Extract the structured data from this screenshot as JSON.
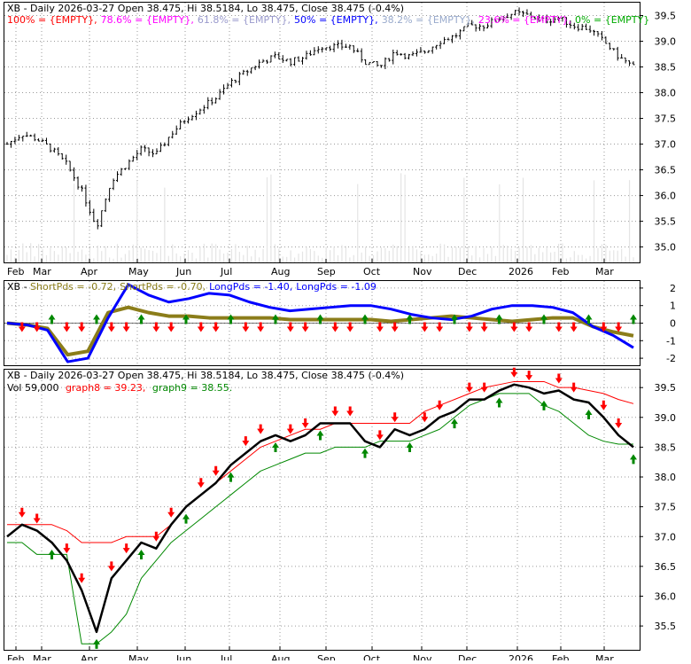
{
  "colors": {
    "background": "#ffffff",
    "frame": "#000000",
    "grid": "#9a9a9a",
    "candle": "#000000",
    "volume": "#e4e4e4",
    "fib_100": "#ff0000",
    "fib_78_6": "#ff00ff",
    "fib_61_8": "#9999cc",
    "fib_50": "#0000ff",
    "fib_38_2": "#99aacc",
    "fib_23_6": "#ff00ff",
    "fib_0": "#00aa00",
    "text": "#000000",
    "short_pds": "#8b7d1a",
    "long_pds": "#0000ff",
    "arrow_up": "#008800",
    "arrow_down": "#ff0000",
    "graph8": "#ff0000",
    "graph9": "#008800"
  },
  "panel1": {
    "header_prefix": "XB - Daily 2026-03-27 Open 38.475, Hi 38.5184, Lo 38.475, Close 38.475 (-0.4%)",
    "fib_labels": [
      {
        "text": "100% = {EMPTY},",
        "color_key": "fib_100"
      },
      {
        "text": "78.6% = {EMPTY},",
        "color_key": "fib_78_6"
      },
      {
        "text": "61.8% = {EMPTY},",
        "color_key": "fib_61_8"
      },
      {
        "text": "50% = {EMPTY},",
        "color_key": "fib_50"
      },
      {
        "text": "38.2% = {EMPTY},",
        "color_key": "fib_38_2"
      },
      {
        "text": "23.6% = {EMPTY},",
        "color_key": "fib_23_6"
      },
      {
        "text": "0% = {EMPTY}",
        "color_key": "fib_0"
      }
    ]
  },
  "panel2": {
    "header": [
      {
        "text": "XB - ",
        "color_key": "text"
      },
      {
        "text": "ShortPds = -0.72,",
        "color_key": "short_pds"
      },
      {
        "text": "ShortPds = -0.70,",
        "color_key": "short_pds"
      },
      {
        "text": "LongPds = -1.40,",
        "color_key": "long_pds"
      },
      {
        "text": "LongPds = -1.09",
        "color_key": "long_pds"
      }
    ]
  },
  "panel3": {
    "header_line1": "XB - Daily 2026-03-27 Open 38.475, Hi 38.5184, Lo 38.475, Close 38.475 (-0.4%)",
    "vol_text": "Vol 59,000",
    "graph8_text": "graph8 = 39.23,",
    "graph9_text": "graph9 = 38.55."
  },
  "chart_data": [
    {
      "type": "candlestick",
      "title": "XB - Daily 2026-03-27 Open 38.475, Hi 38.5184, Lo 38.475, Close 38.475 (-0.4%)",
      "x_ticks": [
        "Feb",
        "Mar",
        "Apr",
        "May",
        "Jun",
        "Jul",
        "Aug",
        "Sep",
        "Oct",
        "Nov",
        "Dec",
        "2026",
        "Feb",
        "Mar"
      ],
      "ylim": [
        34.7,
        39.75
      ],
      "y_ticks": [
        35.0,
        35.5,
        36.0,
        36.5,
        37.0,
        37.5,
        38.0,
        38.5,
        39.0,
        39.5
      ],
      "grid": true,
      "series": [
        {
          "name": "Close",
          "values": [
            37.0,
            37.2,
            37.1,
            36.9,
            36.6,
            36.1,
            35.4,
            36.3,
            36.6,
            36.9,
            36.8,
            37.2,
            37.5,
            37.7,
            37.9,
            38.2,
            38.4,
            38.6,
            38.7,
            38.6,
            38.7,
            38.9,
            38.9,
            38.9,
            38.6,
            38.5,
            38.8,
            38.7,
            38.8,
            39.0,
            39.1,
            39.3,
            39.3,
            39.45,
            39.55,
            39.5,
            39.4,
            39.45,
            39.3,
            39.25,
            39.0,
            38.7,
            38.5
          ]
        }
      ]
    },
    {
      "type": "line",
      "title": "XB - ShortPds / LongPds",
      "x_ticks": [
        "Feb",
        "Mar",
        "Apr",
        "May",
        "Jun",
        "Jul",
        "Aug",
        "Sep",
        "Oct",
        "Nov",
        "Dec",
        "2026",
        "Feb",
        "Mar"
      ],
      "ylim": [
        -2.4,
        2.4
      ],
      "y_ticks": [
        -2,
        -1,
        0,
        1,
        2
      ],
      "grid": true,
      "series": [
        {
          "name": "ShortPds",
          "values": [
            0.0,
            -0.1,
            -0.3,
            -1.8,
            -1.6,
            0.6,
            0.9,
            0.6,
            0.4,
            0.4,
            0.3,
            0.3,
            0.3,
            0.3,
            0.2,
            0.2,
            0.2,
            0.2,
            0.2,
            0.1,
            0.2,
            0.3,
            0.4,
            0.3,
            0.2,
            0.1,
            0.2,
            0.3,
            0.3,
            -0.2,
            -0.5,
            -0.72
          ]
        },
        {
          "name": "LongPds",
          "values": [
            0.0,
            -0.1,
            -0.4,
            -2.2,
            -2.0,
            0.3,
            2.2,
            1.6,
            1.2,
            1.4,
            1.7,
            1.6,
            1.2,
            0.9,
            0.7,
            0.8,
            0.9,
            1.0,
            1.0,
            0.8,
            0.5,
            0.3,
            0.2,
            0.4,
            0.8,
            1.0,
            1.0,
            0.9,
            0.6,
            -0.2,
            -0.7,
            -1.4
          ]
        }
      ]
    },
    {
      "type": "line",
      "title": "XB - Daily 2026-03-27 Open 38.475, Hi 38.5184, Lo 38.475, Close 38.475 (-0.4%)",
      "x_ticks": [
        "Feb",
        "Mar",
        "Apr",
        "May",
        "Jun",
        "Jul",
        "Aug",
        "Sep",
        "Oct",
        "Nov",
        "Dec",
        "2026",
        "Feb",
        "Mar"
      ],
      "ylim": [
        35.1,
        39.8
      ],
      "y_ticks": [
        35.5,
        36.0,
        36.5,
        37.0,
        37.5,
        38.0,
        38.5,
        39.0,
        39.5
      ],
      "grid": true,
      "series": [
        {
          "name": "Close",
          "values": [
            37.0,
            37.2,
            37.1,
            36.9,
            36.6,
            36.1,
            35.4,
            36.3,
            36.6,
            36.9,
            36.8,
            37.2,
            37.5,
            37.7,
            37.9,
            38.2,
            38.4,
            38.6,
            38.7,
            38.6,
            38.7,
            38.9,
            38.9,
            38.9,
            38.6,
            38.5,
            38.8,
            38.7,
            38.8,
            39.0,
            39.1,
            39.3,
            39.3,
            39.45,
            39.55,
            39.5,
            39.4,
            39.45,
            39.3,
            39.25,
            39.0,
            38.7,
            38.5
          ]
        },
        {
          "name": "graph8",
          "values": [
            37.2,
            37.2,
            37.2,
            37.2,
            37.1,
            36.9,
            36.9,
            36.9,
            37.0,
            37.0,
            37.0,
            37.2,
            37.5,
            37.7,
            37.9,
            38.1,
            38.3,
            38.5,
            38.6,
            38.7,
            38.8,
            38.8,
            38.9,
            38.9,
            38.9,
            38.9,
            38.9,
            38.9,
            39.1,
            39.2,
            39.3,
            39.4,
            39.5,
            39.55,
            39.6,
            39.6,
            39.6,
            39.5,
            39.5,
            39.45,
            39.4,
            39.3,
            39.23
          ]
        },
        {
          "name": "graph9",
          "values": [
            36.9,
            36.9,
            36.7,
            36.7,
            36.7,
            35.2,
            35.2,
            35.4,
            35.7,
            36.3,
            36.6,
            36.9,
            37.1,
            37.3,
            37.5,
            37.7,
            37.9,
            38.1,
            38.2,
            38.3,
            38.4,
            38.4,
            38.5,
            38.5,
            38.5,
            38.6,
            38.6,
            38.6,
            38.7,
            38.8,
            39.0,
            39.2,
            39.3,
            39.4,
            39.4,
            39.4,
            39.2,
            39.1,
            38.9,
            38.7,
            38.6,
            38.55,
            38.55
          ]
        }
      ]
    }
  ]
}
